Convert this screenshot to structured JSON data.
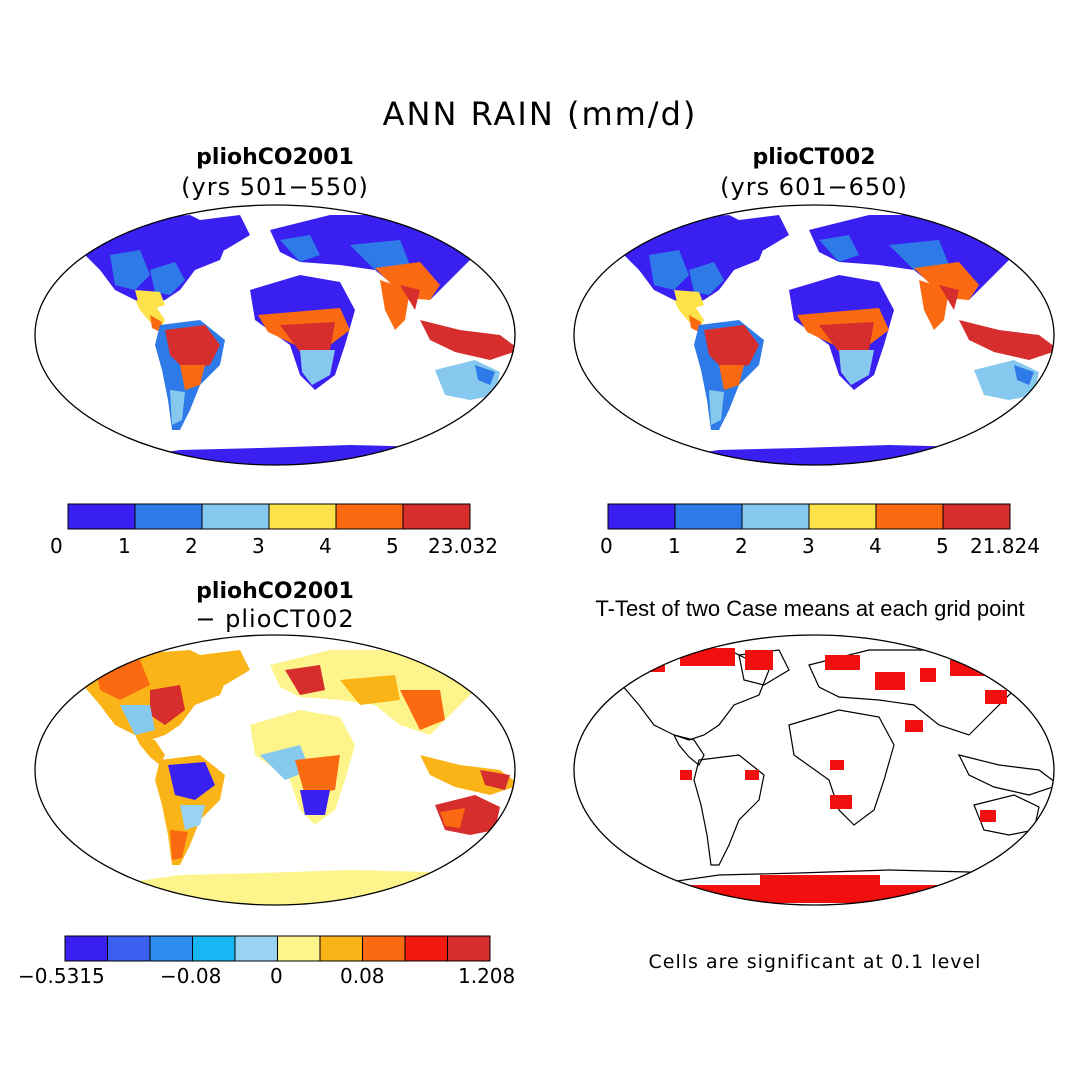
{
  "main_title": "ANN RAIN (mm/d)",
  "panels": [
    {
      "title": "pliohCO2001",
      "subtitle": "(yrs 501−550)"
    },
    {
      "title": "plioCT002",
      "subtitle": "(yrs 601−650)"
    },
    {
      "title": "pliohCO2001",
      "subtitle": "− plioCT002"
    },
    {
      "title": "T-Test of two Case means at each grid point",
      "subtitle": ""
    }
  ],
  "colorbars": [
    {
      "colors": [
        "#3a20f0",
        "#2e7ae8",
        "#87c8ee",
        "#fde24a",
        "#fb6a10",
        "#d62d2d"
      ],
      "ticks": [
        "0",
        "1",
        "2",
        "3",
        "4",
        "5",
        "23.032"
      ]
    },
    {
      "colors": [
        "#3a20f0",
        "#2e7ae8",
        "#87c8ee",
        "#fde24a",
        "#fb6a10",
        "#d62d2d"
      ],
      "ticks": [
        "0",
        "1",
        "2",
        "3",
        "4",
        "5",
        "21.824"
      ]
    },
    {
      "colors": [
        "#3a20f0",
        "#3b5ff0",
        "#2e8ef0",
        "#18b6f2",
        "#98d4f2",
        "#fdf58c",
        "#fbb418",
        "#fb6a10",
        "#f21a10",
        "#d62d2d"
      ],
      "ticks": [
        "−0.5315",
        "−0.08",
        "0",
        "0.08",
        "1.208"
      ]
    }
  ],
  "significance_note": "Cells are significant at 0.1 level",
  "significance_color": "#f20f0f"
}
